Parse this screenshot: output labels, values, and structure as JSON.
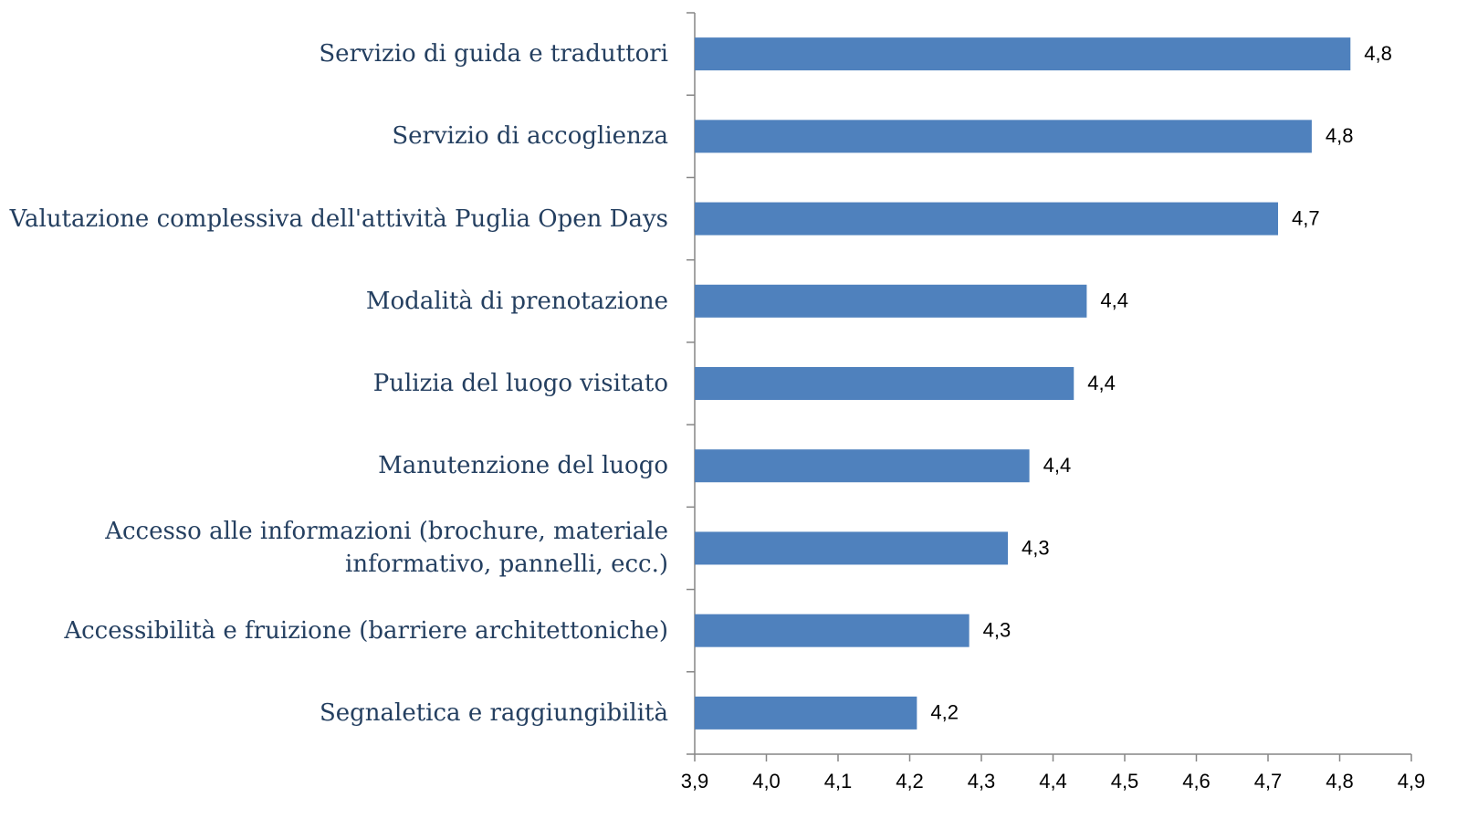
{
  "chart_data": {
    "type": "barh",
    "categories": [
      "Servizio di guida e traduttori",
      "Servizio di accoglienza",
      "Valutazione complessiva dell'attività Puglia Open Days",
      "Modalità di prenotazione",
      "Pulizia del luogo visitato",
      "Manutenzione del luogo",
      "Accesso alle informazioni (brochure, materiale\ninformativo, pannelli, ecc.)",
      "Accessibilità e fruizione (barriere architettoniche)",
      "Segnaletica e raggiungibilità"
    ],
    "values": [
      4.815,
      4.761,
      4.714,
      4.447,
      4.429,
      4.367,
      4.337,
      4.283,
      4.21
    ],
    "value_labels": [
      "4,8",
      "4,8",
      "4,7",
      "4,4",
      "4,4",
      "4,4",
      "4,3",
      "4,3",
      "4,2"
    ],
    "color": "#4f81bd",
    "xlim": [
      3.9,
      4.9
    ],
    "xticks": [
      {
        "value": 3.9,
        "label": "3,9"
      },
      {
        "value": 4.0,
        "label": "4,0"
      },
      {
        "value": 4.1,
        "label": "4,1"
      },
      {
        "value": 4.2,
        "label": "4,2"
      },
      {
        "value": 4.3,
        "label": "4,3"
      },
      {
        "value": 4.4,
        "label": "4,4"
      },
      {
        "value": 4.5,
        "label": "4,5"
      },
      {
        "value": 4.6,
        "label": "4,6"
      },
      {
        "value": 4.7,
        "label": "4,7"
      },
      {
        "value": 4.8,
        "label": "4,8"
      },
      {
        "value": 4.9,
        "label": "4,9"
      }
    ]
  }
}
